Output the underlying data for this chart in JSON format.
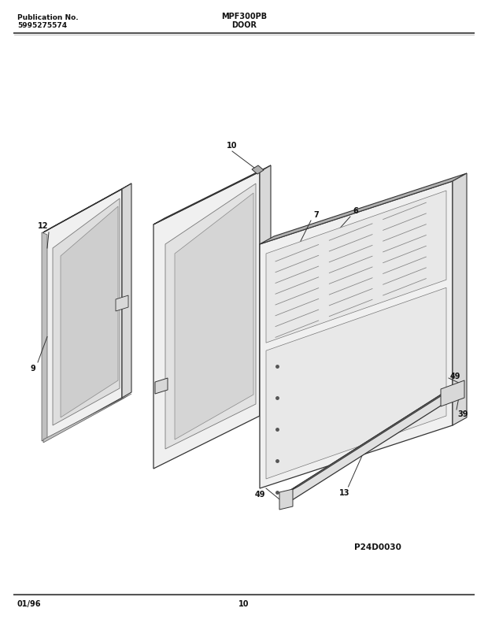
{
  "title_model": "MPF300PB",
  "title_section": "DOOR",
  "pub_label": "Publication No.",
  "pub_number": "5995275574",
  "footer_date": "01/96",
  "footer_page": "10",
  "diagram_id": "P24D0030",
  "bg_color": "#ffffff",
  "line_color": "#333333",
  "text_color": "#111111",
  "gray_light": "#f0f0f0",
  "gray_mid": "#d8d8d8",
  "gray_dark": "#b0b0b0",
  "gray_edge": "#888888"
}
